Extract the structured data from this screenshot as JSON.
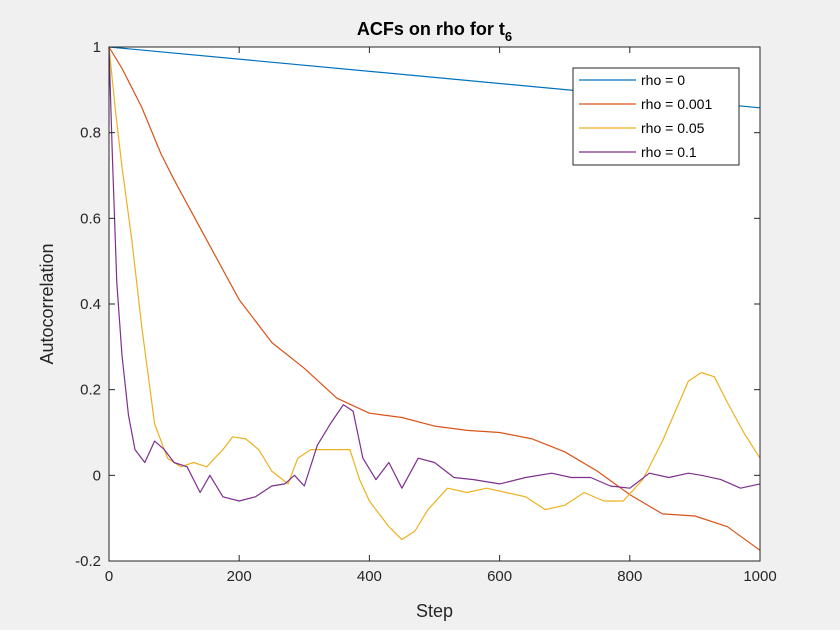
{
  "chart_data": {
    "type": "line",
    "title": "ACFs on rho for t",
    "title_subscript": "6",
    "xlabel": "Step",
    "ylabel": "Autocorrelation",
    "xlim": [
      0,
      1000
    ],
    "ylim": [
      -0.2,
      1
    ],
    "xticks": [
      0,
      200,
      400,
      600,
      800,
      1000
    ],
    "yticks": [
      -0.2,
      0,
      0.2,
      0.4,
      0.6,
      0.8,
      1
    ],
    "xtick_labels": [
      "0",
      "200",
      "400",
      "600",
      "800",
      "1000"
    ],
    "ytick_labels": [
      "-0.2",
      "0",
      "0.2",
      "0.4",
      "0.6",
      "0.8",
      "1"
    ],
    "grid": false,
    "legend_position": "top-right",
    "series": [
      {
        "name": "rho = 0",
        "color": "#0072BD",
        "x": [
          0,
          1000
        ],
        "y": [
          1,
          0.858
        ]
      },
      {
        "name": "rho = 0.001",
        "color": "#D95319",
        "x": [
          0,
          20,
          50,
          80,
          100,
          150,
          200,
          250,
          300,
          350,
          400,
          450,
          500,
          550,
          600,
          650,
          700,
          750,
          800,
          850,
          900,
          950,
          1000
        ],
        "y": [
          1,
          0.95,
          0.86,
          0.75,
          0.69,
          0.55,
          0.41,
          0.31,
          0.25,
          0.18,
          0.145,
          0.135,
          0.115,
          0.105,
          0.1,
          0.085,
          0.055,
          0.01,
          -0.045,
          -0.09,
          -0.095,
          -0.12,
          -0.175
        ]
      },
      {
        "name": "rho = 0.05",
        "color": "#EDB120",
        "x": [
          0,
          10,
          20,
          35,
          50,
          70,
          90,
          110,
          130,
          150,
          175,
          190,
          210,
          230,
          250,
          275,
          290,
          310,
          330,
          350,
          370,
          385,
          400,
          430,
          450,
          470,
          490,
          520,
          550,
          580,
          610,
          640,
          670,
          700,
          730,
          760,
          790,
          820,
          850,
          870,
          890,
          910,
          930,
          950,
          975,
          1000
        ],
        "y": [
          1,
          0.85,
          0.72,
          0.55,
          0.35,
          0.12,
          0.04,
          0.02,
          0.03,
          0.02,
          0.06,
          0.09,
          0.085,
          0.06,
          0.01,
          -0.02,
          0.04,
          0.06,
          0.06,
          0.06,
          0.06,
          -0.01,
          -0.06,
          -0.12,
          -0.15,
          -0.13,
          -0.08,
          -0.03,
          -0.04,
          -0.03,
          -0.04,
          -0.05,
          -0.08,
          -0.07,
          -0.04,
          -0.06,
          -0.06,
          -0.01,
          0.08,
          0.15,
          0.22,
          0.24,
          0.23,
          0.17,
          0.1,
          0.04
        ]
      },
      {
        "name": "rho = 0.1",
        "color": "#7E2F8E",
        "x": [
          0,
          5,
          12,
          20,
          30,
          40,
          55,
          70,
          85,
          100,
          120,
          140,
          155,
          175,
          200,
          225,
          250,
          270,
          285,
          300,
          320,
          340,
          360,
          375,
          390,
          410,
          430,
          450,
          475,
          500,
          530,
          560,
          600,
          640,
          680,
          710,
          740,
          770,
          800,
          830,
          860,
          890,
          910,
          940,
          970,
          1000
        ],
        "y": [
          1,
          0.75,
          0.45,
          0.28,
          0.14,
          0.06,
          0.03,
          0.08,
          0.06,
          0.03,
          0.02,
          -0.04,
          0.0,
          -0.05,
          -0.06,
          -0.05,
          -0.025,
          -0.02,
          0.0,
          -0.025,
          0.07,
          0.12,
          0.165,
          0.15,
          0.04,
          -0.01,
          0.03,
          -0.03,
          0.04,
          0.03,
          -0.005,
          -0.01,
          -0.02,
          -0.005,
          0.005,
          -0.005,
          -0.005,
          -0.025,
          -0.03,
          0.005,
          -0.005,
          0.005,
          0.0,
          -0.01,
          -0.03,
          -0.02
        ]
      }
    ]
  }
}
